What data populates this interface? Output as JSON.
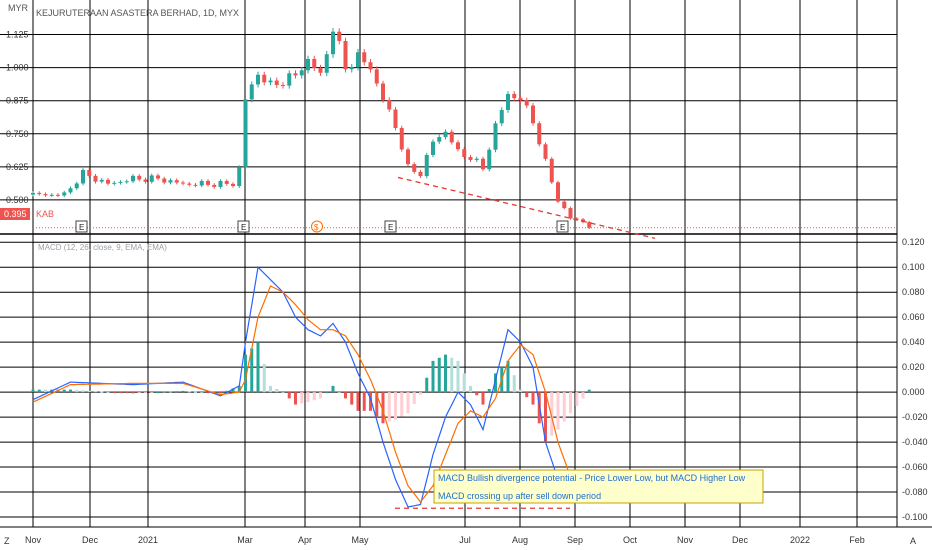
{
  "header": {
    "title": "KEJURUTERAAN ASASTERA BERHAD, 1D, MYX",
    "currency": "MYR"
  },
  "price_marker": {
    "value": "0.395",
    "symbol": "KAB"
  },
  "indicator_label": "MACD (12, 26, close, 9, EMA, EMA)",
  "earnings_markers": [
    "E",
    "E",
    "E",
    "E"
  ],
  "dividend_marker": "$",
  "annotation_lines": [
    "MACD Bullish divergence potential - Price Lower Low, but MACD Higher Low",
    "MACD crossing up after sell down period"
  ],
  "corner_labels": {
    "left": "Z",
    "right": "A"
  },
  "colors": {
    "up": "#26a69a",
    "down": "#ef5350",
    "macd_line": "#2962ff",
    "signal_line": "#ff6d00",
    "trendline": "#e53935",
    "note_bg": "#ffffcc",
    "note_border": "#c8a200"
  },
  "chart_data": [
    {
      "type": "candlestick",
      "title": "KEJURUTERAAN ASASTERA BERHAD, 1D, MYX",
      "ylim": [
        0.375,
        1.18
      ],
      "y_ticks": [
        "1.125",
        "1.000",
        "0.875",
        "0.750",
        "0.625",
        "0.500"
      ],
      "x_ticks": [
        "Nov",
        "Dec",
        "2021",
        "Mar",
        "Apr",
        "May",
        "Jul",
        "Aug",
        "Sep",
        "Oct",
        "Nov",
        "Dec",
        "2022",
        "Feb"
      ],
      "last_price": 0.395,
      "price_path": [
        [
          0,
          0.52
        ],
        [
          5,
          0.52
        ],
        [
          8,
          0.6
        ],
        [
          12,
          0.56
        ],
        [
          16,
          0.58
        ],
        [
          20,
          0.58
        ],
        [
          24,
          0.56
        ],
        [
          28,
          0.56
        ],
        [
          32,
          0.56
        ],
        [
          33,
          0.62
        ],
        [
          34,
          0.88
        ],
        [
          36,
          0.98
        ],
        [
          38,
          0.93
        ],
        [
          42,
          0.97
        ],
        [
          44,
          1.03
        ],
        [
          46,
          0.97
        ],
        [
          48,
          1.15
        ],
        [
          50,
          1.0
        ],
        [
          52,
          1.04
        ],
        [
          54,
          1.0
        ],
        [
          56,
          0.88
        ],
        [
          58,
          0.78
        ],
        [
          60,
          0.62
        ],
        [
          62,
          0.6
        ],
        [
          64,
          0.72
        ],
        [
          66,
          0.76
        ],
        [
          68,
          0.68
        ],
        [
          70,
          0.66
        ],
        [
          72,
          0.62
        ],
        [
          74,
          0.78
        ],
        [
          76,
          0.9
        ],
        [
          78,
          0.88
        ],
        [
          80,
          0.8
        ],
        [
          82,
          0.64
        ],
        [
          84,
          0.5
        ],
        [
          86,
          0.43
        ],
        [
          88,
          0.42
        ],
        [
          89,
          0.4
        ]
      ],
      "trendline": [
        [
          0.585,
          "May"
        ],
        [
          0.355,
          "Oct"
        ]
      ]
    },
    {
      "type": "line",
      "title": "MACD (12, 26, close, 9, EMA, EMA)",
      "ylim": [
        -0.108,
        0.125
      ],
      "y_ticks": [
        "0.120",
        "0.100",
        "0.080",
        "0.060",
        "0.040",
        "0.020",
        "0.000",
        "-0.020",
        "-0.040",
        "-0.060",
        "-0.080",
        "-0.100"
      ],
      "series": [
        {
          "role": "macd",
          "points": [
            [
              0,
              -0.006
            ],
            [
              6,
              0.008
            ],
            [
              16,
              0.006
            ],
            [
              24,
              0.008
            ],
            [
              30,
              -0.003
            ],
            [
              33,
              0.005
            ],
            [
              34,
              0.04
            ],
            [
              36,
              0.1
            ],
            [
              38,
              0.09
            ],
            [
              40,
              0.08
            ],
            [
              42,
              0.06
            ],
            [
              44,
              0.05
            ],
            [
              46,
              0.045
            ],
            [
              48,
              0.055
            ],
            [
              50,
              0.04
            ],
            [
              52,
              0.015
            ],
            [
              54,
              -0.005
            ],
            [
              56,
              -0.04
            ],
            [
              58,
              -0.07
            ],
            [
              60,
              -0.092
            ],
            [
              62,
              -0.09
            ],
            [
              64,
              -0.05
            ],
            [
              66,
              -0.02
            ],
            [
              68,
              0.0
            ],
            [
              70,
              -0.01
            ],
            [
              72,
              -0.03
            ],
            [
              74,
              0.01
            ],
            [
              76,
              0.05
            ],
            [
              78,
              0.04
            ],
            [
              80,
              0.02
            ],
            [
              82,
              -0.04
            ],
            [
              84,
              -0.07
            ],
            [
              86,
              -0.085
            ],
            [
              88,
              -0.085
            ],
            [
              89,
              -0.08
            ]
          ]
        },
        {
          "role": "signal",
          "points": [
            [
              0,
              -0.008
            ],
            [
              6,
              0.006
            ],
            [
              16,
              0.007
            ],
            [
              24,
              0.007
            ],
            [
              30,
              -0.002
            ],
            [
              33,
              0.0
            ],
            [
              34,
              0.01
            ],
            [
              36,
              0.06
            ],
            [
              38,
              0.085
            ],
            [
              40,
              0.08
            ],
            [
              42,
              0.07
            ],
            [
              44,
              0.058
            ],
            [
              46,
              0.05
            ],
            [
              48,
              0.05
            ],
            [
              50,
              0.045
            ],
            [
              52,
              0.03
            ],
            [
              54,
              0.01
            ],
            [
              56,
              -0.015
            ],
            [
              58,
              -0.048
            ],
            [
              60,
              -0.075
            ],
            [
              62,
              -0.088
            ],
            [
              64,
              -0.075
            ],
            [
              66,
              -0.05
            ],
            [
              68,
              -0.025
            ],
            [
              70,
              -0.015
            ],
            [
              72,
              -0.02
            ],
            [
              74,
              -0.005
            ],
            [
              76,
              0.025
            ],
            [
              78,
              0.038
            ],
            [
              80,
              0.03
            ],
            [
              82,
              0.0
            ],
            [
              84,
              -0.04
            ],
            [
              86,
              -0.068
            ],
            [
              88,
              -0.08
            ],
            [
              89,
              -0.082
            ]
          ]
        }
      ],
      "histogram_note": "histogram = macd - signal",
      "trendline": [
        [
          -0.093,
          "May"
        ],
        [
          -0.093,
          "Aug"
        ]
      ]
    }
  ]
}
